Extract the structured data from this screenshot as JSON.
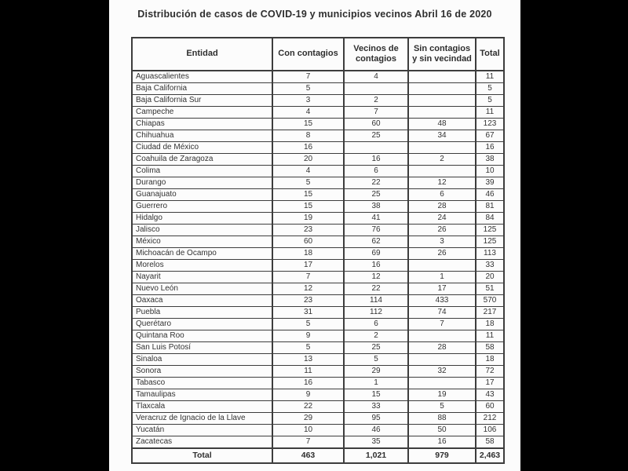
{
  "title": "Distribución de casos de COVID-19 y municipios vecinos Abril 16 de 2020",
  "chart_data": {
    "type": "table",
    "title": "Distribución de casos de COVID-19 y municipios vecinos Abril 16 de 2020",
    "columns": [
      "Entidad",
      "Con contagios",
      "Vecinos de contagios",
      "Sin contagios y sin vecindad",
      "Total"
    ],
    "rows": [
      [
        "Aguascalientes",
        "7",
        "4",
        "",
        "11"
      ],
      [
        "Baja California",
        "5",
        "",
        "",
        "5"
      ],
      [
        "Baja California Sur",
        "3",
        "2",
        "",
        "5"
      ],
      [
        "Campeche",
        "4",
        "7",
        "",
        "11"
      ],
      [
        "Chiapas",
        "15",
        "60",
        "48",
        "123"
      ],
      [
        "Chihuahua",
        "8",
        "25",
        "34",
        "67"
      ],
      [
        "Ciudad de México",
        "16",
        "",
        "",
        "16"
      ],
      [
        "Coahuila de Zaragoza",
        "20",
        "16",
        "2",
        "38"
      ],
      [
        "Colima",
        "4",
        "6",
        "",
        "10"
      ],
      [
        "Durango",
        "5",
        "22",
        "12",
        "39"
      ],
      [
        "Guanajuato",
        "15",
        "25",
        "6",
        "46"
      ],
      [
        "Guerrero",
        "15",
        "38",
        "28",
        "81"
      ],
      [
        "Hidalgo",
        "19",
        "41",
        "24",
        "84"
      ],
      [
        "Jalisco",
        "23",
        "76",
        "26",
        "125"
      ],
      [
        "México",
        "60",
        "62",
        "3",
        "125"
      ],
      [
        "Michoacán de Ocampo",
        "18",
        "69",
        "26",
        "113"
      ],
      [
        "Morelos",
        "17",
        "16",
        "",
        "33"
      ],
      [
        "Nayarit",
        "7",
        "12",
        "1",
        "20"
      ],
      [
        "Nuevo León",
        "12",
        "22",
        "17",
        "51"
      ],
      [
        "Oaxaca",
        "23",
        "114",
        "433",
        "570"
      ],
      [
        "Puebla",
        "31",
        "112",
        "74",
        "217"
      ],
      [
        "Querétaro",
        "5",
        "6",
        "7",
        "18"
      ],
      [
        "Quintana Roo",
        "9",
        "2",
        "",
        "11"
      ],
      [
        "San Luis Potosí",
        "5",
        "25",
        "28",
        "58"
      ],
      [
        "Sinaloa",
        "13",
        "5",
        "",
        "18"
      ],
      [
        "Sonora",
        "11",
        "29",
        "32",
        "72"
      ],
      [
        "Tabasco",
        "16",
        "1",
        "",
        "17"
      ],
      [
        "Tamaulipas",
        "9",
        "15",
        "19",
        "43"
      ],
      [
        "Tlaxcala",
        "22",
        "33",
        "5",
        "60"
      ],
      [
        "Veracruz de Ignacio de la Llave",
        "29",
        "95",
        "88",
        "212"
      ],
      [
        "Yucatán",
        "10",
        "46",
        "50",
        "106"
      ],
      [
        "Zacatecas",
        "7",
        "35",
        "16",
        "58"
      ]
    ],
    "totals": [
      "Total",
      "463",
      "1,021",
      "979",
      "2,463"
    ],
    "layout": {
      "legend": "none",
      "grid": "full-borders",
      "column_alignment": [
        "left",
        "center",
        "center",
        "center",
        "center"
      ]
    }
  },
  "colors": {
    "letterbox": "#000000",
    "slide_background": "#fcfcfc",
    "border": "#3d3d3d",
    "text": "#333333"
  }
}
